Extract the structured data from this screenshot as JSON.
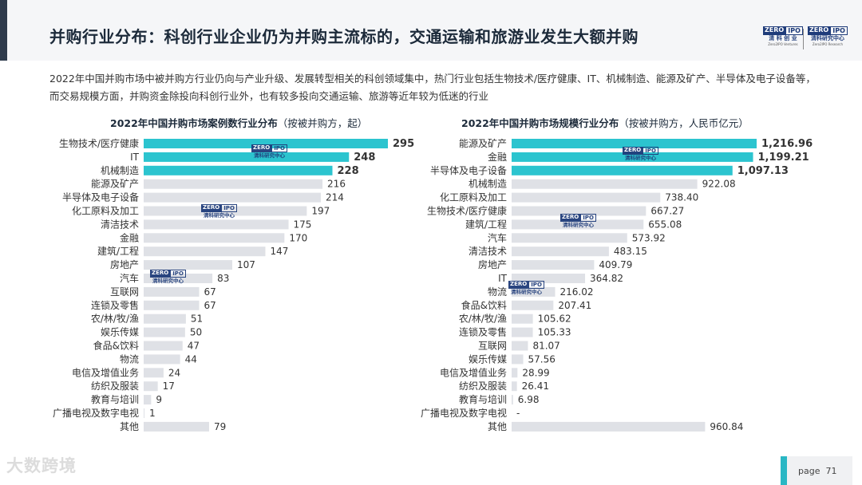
{
  "header": {
    "title": "并购行业分布：科创行业企业仍为并购主流标的，交通运输和旅游业发生大额并购",
    "logo1": {
      "zero": "ZERO",
      "ipo": "IPO",
      "cn": "清 科 创 业",
      "en": "Zero2IPO Ventures"
    },
    "logo2": {
      "zero": "ZERO",
      "ipo": "IPO",
      "cn": "清科研究中心",
      "en": "Zero2IPO Research"
    }
  },
  "intro": "2022年中国并购市场中被并购方行业仍向与产业升级、发展转型相关的科创领域集中，热门行业包括生物技术/医疗健康、IT、机械制造、能源及矿产、半导体及电子设备等，而交易规模方面，并购资金除投向科创行业外，也有较多投向交通运输、旅游等近年较为低迷的行业",
  "watermark": {
    "zero": "ZERO",
    "ipo": "IPO",
    "cn": "清科研究中心",
    "en": "Zero2IPO Research"
  },
  "chart_data": [
    {
      "type": "bar",
      "orientation": "horizontal",
      "title": "2022年中国并购市场案例数行业分布",
      "subtitle": "（按被并购方，起）",
      "categories": [
        "生物技术/医疗健康",
        "IT",
        "机械制造",
        "能源及矿产",
        "半导体及电子设备",
        "化工原料及加工",
        "清洁技术",
        "金融",
        "建筑/工程",
        "房地产",
        "汽车",
        "互联网",
        "连锁及零售",
        "农/林/牧/渔",
        "娱乐传媒",
        "食品&饮料",
        "物流",
        "电信及增值业务",
        "纺织及服装",
        "教育与培训",
        "广播电视及数字电视",
        "其他"
      ],
      "values": [
        295,
        248,
        228,
        216,
        214,
        197,
        175,
        170,
        147,
        107,
        83,
        67,
        67,
        51,
        50,
        47,
        44,
        24,
        17,
        9,
        1,
        79
      ],
      "labels": [
        "295",
        "248",
        "228",
        "216",
        "214",
        "197",
        "175",
        "170",
        "147",
        "107",
        "83",
        "67",
        "67",
        "51",
        "50",
        "47",
        "44",
        "24",
        "17",
        "9",
        "1",
        "79"
      ],
      "highlight_top": 3,
      "highlight_color": "#2cc4cf",
      "bar_color": "#dfe1e6"
    },
    {
      "type": "bar",
      "orientation": "horizontal",
      "title": "2022年中国并购市场规模行业分布",
      "subtitle": "（按被并购方，人民币亿元）",
      "categories": [
        "能源及矿产",
        "金融",
        "半导体及电子设备",
        "机械制造",
        "化工原料及加工",
        "生物技术/医疗健康",
        "建筑/工程",
        "汽车",
        "清洁技术",
        "房地产",
        "IT",
        "物流",
        "食品&饮料",
        "农/林/牧/渔",
        "连锁及零售",
        "互联网",
        "娱乐传媒",
        "电信及增值业务",
        "纺织及服装",
        "教育与培训",
        "广播电视及数字电视",
        "其他"
      ],
      "values": [
        1216.96,
        1199.21,
        1097.13,
        922.08,
        738.4,
        667.27,
        655.08,
        573.92,
        483.15,
        409.79,
        364.82,
        216.02,
        207.41,
        105.62,
        105.33,
        81.07,
        57.56,
        28.99,
        26.41,
        6.98,
        0,
        960.84
      ],
      "labels": [
        "1,216.96",
        "1,199.21",
        "1,097.13",
        "922.08",
        "738.40",
        "667.27",
        "655.08",
        "573.92",
        "483.15",
        "409.79",
        "364.82",
        "216.02",
        "207.41",
        "105.62",
        "105.33",
        "81.07",
        "57.56",
        "28.99",
        "26.41",
        "6.98",
        "-",
        "960.84"
      ],
      "highlight_top": 3,
      "highlight_color": "#2cc4cf",
      "bar_color": "#dfe1e6"
    }
  ],
  "footer": {
    "page_label": "page",
    "page_number": "71",
    "brand": "大数跨境"
  }
}
